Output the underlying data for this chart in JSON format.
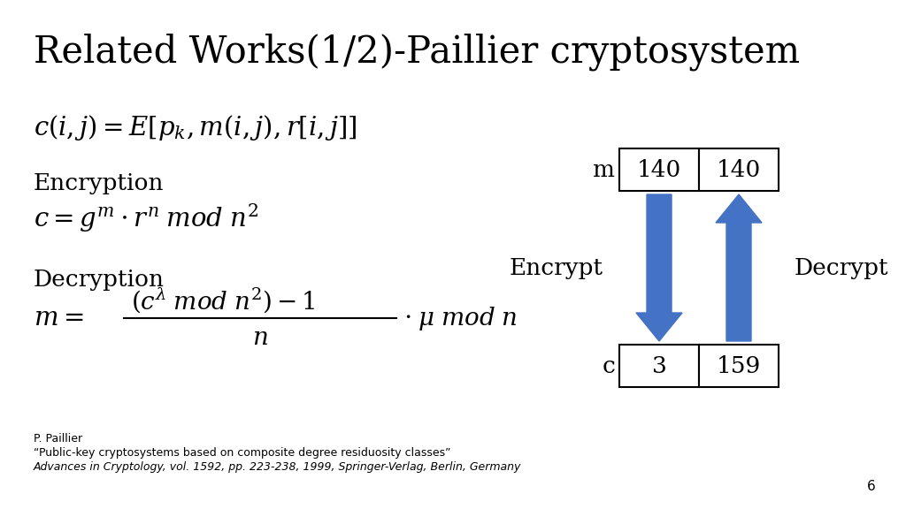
{
  "title": "Related Works(1/2)-Paillier cryptosystem",
  "title_fontsize": 30,
  "bg_color": "#ffffff",
  "text_color": "#000000",
  "arrow_color": "#4472C4",
  "box_color": "#000000",
  "box_fill": "#ffffff",
  "ref_line1": "P. Paillier",
  "ref_line2": "“Public-key cryptosystems based on composite degree residuosity classes”",
  "ref_line3": "Advances in Cryptology, vol. 1592, pp. 223-238, 1999, Springer-Verlag, Berlin, Germany",
  "ref_fontsize": 9,
  "page_num": "6",
  "page_fontsize": 11
}
